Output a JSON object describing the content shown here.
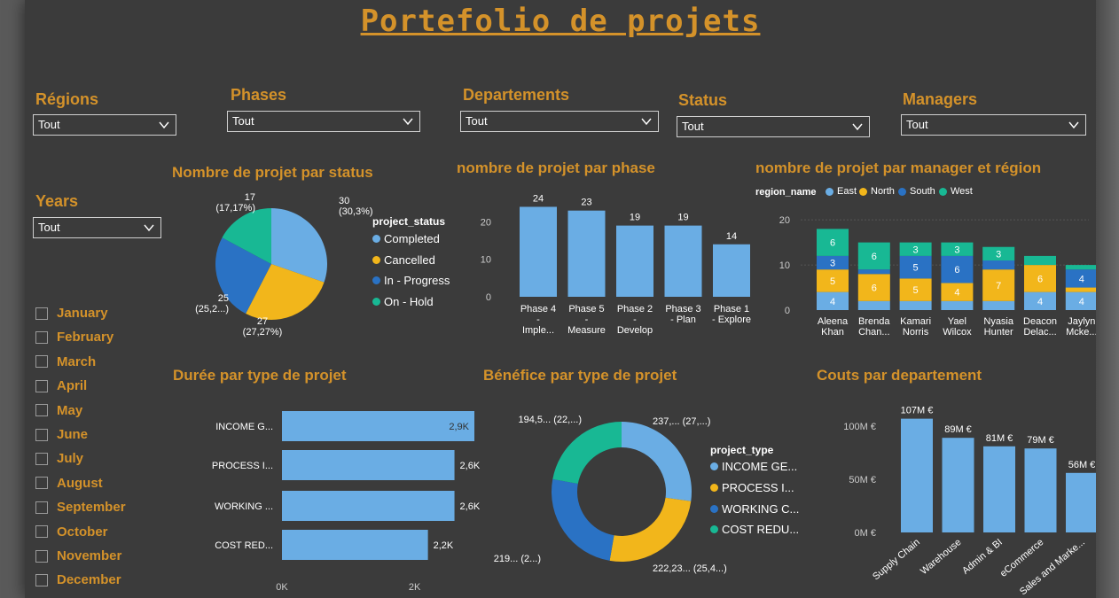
{
  "title": "Portefolio de projets",
  "filters": {
    "regions": {
      "label": "Régions",
      "value": "Tout"
    },
    "phases": {
      "label": "Phases",
      "value": "Tout"
    },
    "departements": {
      "label": "Departements",
      "value": "Tout"
    },
    "status": {
      "label": "Status",
      "value": "Tout"
    },
    "managers": {
      "label": "Managers",
      "value": "Tout"
    },
    "years": {
      "label": "Years",
      "value": "Tout"
    }
  },
  "months": [
    "January",
    "February",
    "March",
    "April",
    "May",
    "June",
    "July",
    "August",
    "September",
    "October",
    "November",
    "December"
  ],
  "colors": {
    "accent": "#d4922a",
    "blue_light": "#6aade4",
    "yellow": "#f2b61b",
    "blue_dark": "#2a72c4",
    "teal": "#18b894",
    "bg": "#3b3b3b"
  },
  "icons": {
    "dropdown": "chevron-down-icon",
    "checkbox": "checkbox-icon"
  },
  "charts": [
    {
      "title": "Nombre de projet par status",
      "type": "pie",
      "legend_title": "project_status",
      "slices": [
        {
          "name": "Completed",
          "value": 30,
          "label": "30",
          "sublabel": "(30,3%)",
          "color": "#6aade4"
        },
        {
          "name": "Cancelled",
          "value": 27,
          "label": "27",
          "sublabel": "(27,27%)",
          "color": "#f2b61b"
        },
        {
          "name": "In - Progress",
          "value": 25,
          "label": "25",
          "sublabel": "(25,2...)",
          "color": "#2a72c4"
        },
        {
          "name": "On - Hold",
          "value": 17,
          "label": "17",
          "sublabel": "(17,17%)",
          "color": "#18b894"
        }
      ]
    },
    {
      "title": "nombre de projet par phase",
      "type": "bar",
      "categories": [
        [
          "Phase 4",
          "-",
          "Imple..."
        ],
        [
          "Phase 5",
          "-",
          "Measure"
        ],
        [
          "Phase 2",
          "-",
          "Develop"
        ],
        [
          "Phase 3",
          "- Plan"
        ],
        [
          "Phase 1",
          "- Explore"
        ]
      ],
      "values": [
        24,
        23,
        19,
        19,
        14
      ],
      "yticks": [
        "0",
        "10",
        "20"
      ],
      "ylim": [
        0,
        26
      ]
    },
    {
      "title": "nombre de projet par manager et région",
      "type": "bar",
      "stacked": true,
      "legend_title": "region_name",
      "categories": [
        [
          "Aleena",
          "Khan"
        ],
        [
          "Brenda",
          "Chan..."
        ],
        [
          "Kamari",
          "Norris"
        ],
        [
          "Yael",
          "Wilcox"
        ],
        [
          "Nyasia",
          "Hunter"
        ],
        [
          "Deacon",
          "Delac..."
        ],
        [
          "Jaylyn",
          "Mcke..."
        ]
      ],
      "series": [
        {
          "name": "East",
          "color": "#6aade4",
          "values": [
            4,
            2,
            2,
            2,
            2,
            4,
            4
          ],
          "labels": [
            "4",
            "",
            "",
            "",
            "",
            "4",
            "4"
          ]
        },
        {
          "name": "North",
          "color": "#f2b61b",
          "values": [
            5,
            6,
            5,
            4,
            7,
            6,
            1
          ],
          "labels": [
            "5",
            "6",
            "5",
            "4",
            "7",
            "6",
            ""
          ]
        },
        {
          "name": "South",
          "color": "#2a72c4",
          "values": [
            3,
            1,
            5,
            6,
            2,
            0,
            4
          ],
          "labels": [
            "3",
            "",
            "5",
            "6",
            "",
            "",
            "4"
          ]
        },
        {
          "name": "West",
          "color": "#18b894",
          "values": [
            6,
            6,
            3,
            3,
            3,
            2,
            1
          ],
          "labels": [
            "6",
            "6",
            "3",
            "3",
            "3",
            "",
            ""
          ]
        }
      ],
      "yticks": [
        "0",
        "10",
        "20"
      ],
      "ylim": [
        0,
        22
      ]
    },
    {
      "title": "Durée par type de projet",
      "type": "bar",
      "orientation": "horizontal",
      "categories": [
        "INCOME G...",
        "PROCESS I...",
        "WORKING ...",
        "COST RED..."
      ],
      "values": [
        2.9,
        2.6,
        2.6,
        2.2
      ],
      "value_labels": [
        "2,9K",
        "2,6K",
        "2,6K",
        "2,2K"
      ],
      "xticks": [
        "0K",
        "2K"
      ],
      "xlim": [
        0,
        3.2
      ]
    },
    {
      "title": "Bénéfice par type de projet",
      "type": "pie",
      "donut": true,
      "legend_title": "project_type",
      "slices": [
        {
          "name": "INCOME GE...",
          "value": 27,
          "label": "237,... (27,...)",
          "color": "#6aade4"
        },
        {
          "name": "PROCESS I...",
          "value": 25.4,
          "label": "222,23... (25,4...)",
          "color": "#f2b61b"
        },
        {
          "name": "WORKING C...",
          "value": 25,
          "label": "219... (2...)",
          "color": "#2a72c4"
        },
        {
          "name": "COST REDU...",
          "value": 22,
          "label": "194,5... (22,...)",
          "color": "#18b894"
        }
      ]
    },
    {
      "title": "Couts par departement",
      "type": "bar",
      "categories": [
        "Supply Chain",
        "Warehouse",
        "Admin & BI",
        "eCommerce",
        "Sales and Marke..."
      ],
      "values": [
        107,
        89,
        81,
        79,
        56
      ],
      "value_labels": [
        "107M €",
        "89M €",
        "81M €",
        "79M €",
        "56M €"
      ],
      "yticks": [
        "0M €",
        "50M €",
        "100M €"
      ],
      "ylim": [
        0,
        110
      ]
    }
  ]
}
